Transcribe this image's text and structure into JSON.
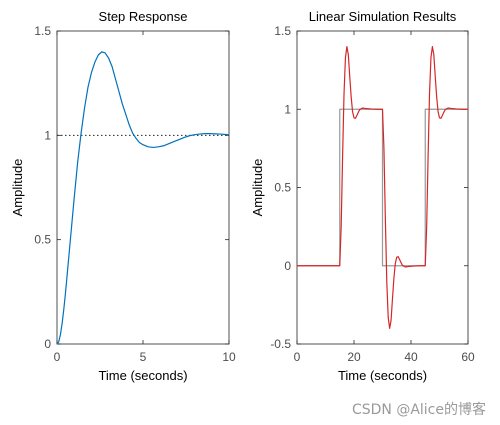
{
  "chart_data": [
    {
      "type": "line",
      "title": "Step Response",
      "xlabel": "Time (seconds)",
      "ylabel": "Amplitude",
      "xlim": [
        0,
        10
      ],
      "ylim": [
        0,
        1.5
      ],
      "xticks": [
        0,
        5,
        10
      ],
      "xtick_labels": [
        "0",
        "5",
        "10"
      ],
      "yticks": [
        0,
        0.5,
        1,
        1.5
      ],
      "ytick_labels": [
        "0",
        "0.5",
        "1",
        "1.5"
      ],
      "grid": false,
      "reference_lines": [
        {
          "y": 1,
          "style": "dotted",
          "color": "#000000"
        }
      ],
      "series": [
        {
          "color": "#0072BD",
          "x": [
            0,
            0.1,
            0.2,
            0.3,
            0.4,
            0.5,
            0.6,
            0.7,
            0.8,
            0.9,
            1.0,
            1.2,
            1.4,
            1.6,
            1.8,
            2.0,
            2.2,
            2.4,
            2.6,
            2.8,
            3.0,
            3.2,
            3.4,
            3.6,
            3.8,
            4.0,
            4.2,
            4.4,
            4.6,
            4.8,
            5.0,
            5.3,
            5.6,
            5.9,
            6.2,
            6.5,
            6.8,
            7.1,
            7.4,
            7.7,
            8.0,
            8.3,
            8.6,
            8.9,
            9.2,
            9.5,
            9.8,
            10.0
          ],
          "y": [
            0,
            0.01,
            0.045,
            0.1,
            0.17,
            0.25,
            0.34,
            0.43,
            0.52,
            0.61,
            0.7,
            0.87,
            1.01,
            1.13,
            1.23,
            1.3,
            1.35,
            1.385,
            1.4,
            1.395,
            1.37,
            1.33,
            1.27,
            1.21,
            1.15,
            1.1,
            1.05,
            1.01,
            0.985,
            0.965,
            0.955,
            0.945,
            0.942,
            0.945,
            0.95,
            0.96,
            0.97,
            0.98,
            0.99,
            0.998,
            1.003,
            1.006,
            1.008,
            1.008,
            1.007,
            1.006,
            1.004,
            1.003
          ]
        }
      ]
    },
    {
      "type": "line",
      "title": "Linear Simulation Results",
      "xlabel": "Time (seconds)",
      "ylabel": "Amplitude",
      "xlim": [
        0,
        60
      ],
      "ylim": [
        -0.5,
        1.5
      ],
      "xticks": [
        0,
        20,
        40,
        60
      ],
      "xtick_labels": [
        "0",
        "20",
        "40",
        "60"
      ],
      "yticks": [
        -0.5,
        0,
        0.5,
        1,
        1.5
      ],
      "ytick_labels": [
        "-0.5",
        "0",
        "0.5",
        "1",
        "1.5"
      ],
      "grid": false,
      "series": [
        {
          "color": "#999999",
          "x": [
            0,
            15,
            15,
            30,
            30,
            45,
            45,
            60
          ],
          "y": [
            0,
            0,
            1,
            1,
            0,
            0,
            1,
            1
          ]
        },
        {
          "color": "#D62728",
          "x": [
            0,
            15,
            15.5,
            16,
            16.5,
            17,
            17.5,
            18,
            18.5,
            19,
            19.5,
            20,
            20.5,
            21,
            21.5,
            22,
            23,
            24,
            26,
            28,
            30,
            30.5,
            31,
            31.5,
            32,
            32.5,
            33,
            33.5,
            34,
            34.5,
            35,
            35.5,
            36,
            36.5,
            37,
            38,
            39,
            41,
            43,
            45,
            45.5,
            46,
            46.5,
            47,
            47.5,
            48,
            48.5,
            49,
            49.5,
            50,
            50.5,
            51,
            51.5,
            52,
            53,
            54,
            56,
            58,
            60
          ],
          "y": [
            0,
            0,
            0.25,
            0.7,
            1.1,
            1.33,
            1.4,
            1.35,
            1.21,
            1.08,
            0.985,
            0.945,
            0.942,
            0.96,
            0.98,
            0.998,
            1.008,
            1.005,
            1.002,
            1.0,
            1.0,
            0.75,
            0.3,
            -0.1,
            -0.33,
            -0.4,
            -0.35,
            -0.21,
            -0.08,
            0.015,
            0.055,
            0.058,
            0.04,
            0.02,
            0.002,
            -0.008,
            -0.005,
            -0.002,
            0,
            0,
            0.25,
            0.7,
            1.1,
            1.33,
            1.4,
            1.35,
            1.21,
            1.08,
            0.985,
            0.945,
            0.942,
            0.96,
            0.98,
            0.998,
            1.008,
            1.005,
            1.002,
            1.0,
            1.0
          ]
        }
      ]
    }
  ],
  "watermark": "CSDN @Alice的博客"
}
